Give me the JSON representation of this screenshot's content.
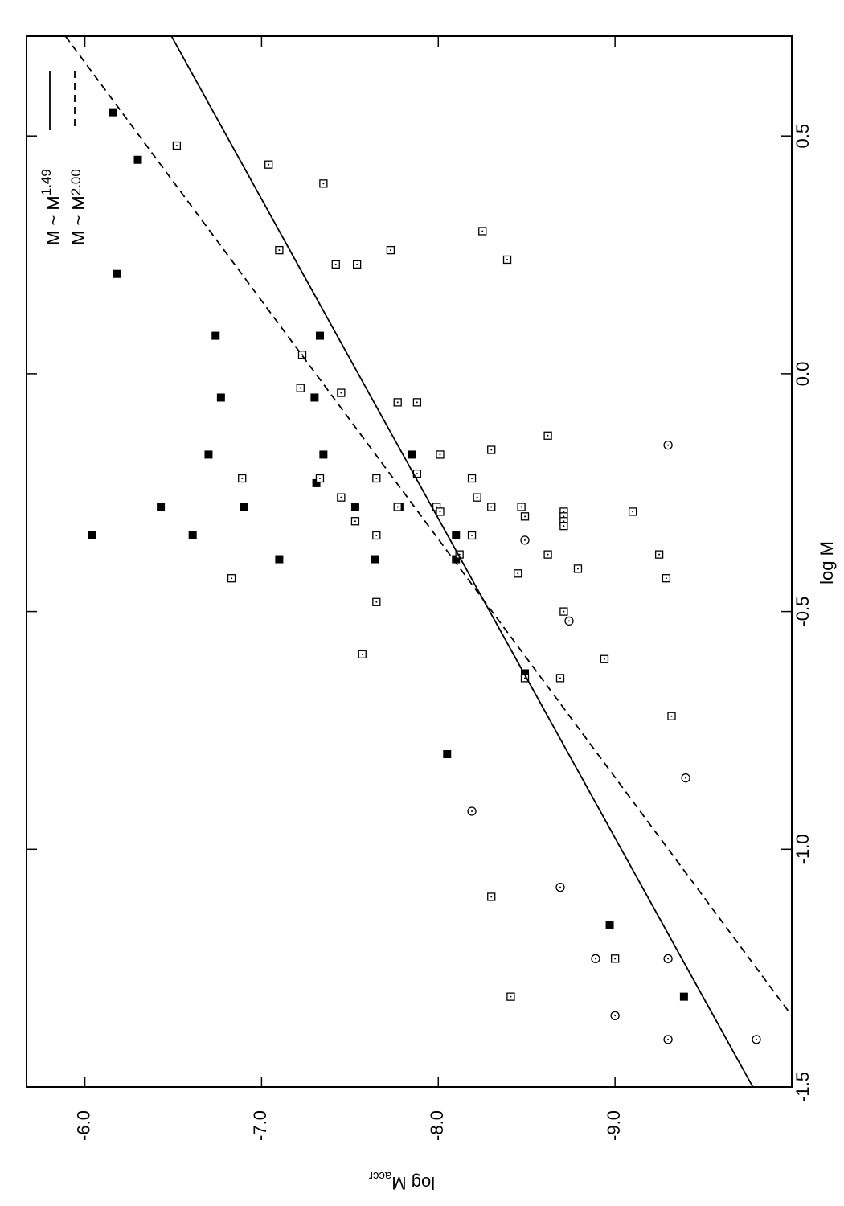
{
  "chart_data": {
    "type": "scatter",
    "x_label": "log M",
    "y_label": "log M",
    "y_label_subscript": "accr",
    "xlim": [
      -1.5,
      0.71
    ],
    "ylim": [
      -10.0,
      -5.67
    ],
    "xticks": [
      -1.5,
      {
        "value": -1.0,
        "label": "-1.0"
      },
      -0.5,
      {
        "value": 0.0,
        "label": "0.0"
      },
      0.5
    ],
    "yticks": [
      {
        "value": -6.0,
        "label": "-6.0"
      },
      {
        "value": -7.0,
        "label": "-7.0"
      },
      {
        "value": -8.0,
        "label": "-8.0"
      },
      {
        "value": -9.0,
        "label": "-9.0"
      }
    ],
    "series": [
      {
        "marker": "filled-square",
        "color": "#000000",
        "x": [
          0.55,
          0.45,
          0.21,
          0.08,
          -0.05,
          -0.17,
          -0.28,
          -0.28,
          -0.34,
          -0.34,
          -0.39,
          0.08,
          -0.05,
          -0.17,
          -0.23,
          -0.28,
          -0.28,
          -0.39,
          -0.17,
          -0.34,
          -0.39,
          -0.63,
          -0.8,
          -1.16,
          -1.31
        ],
        "values": [
          -6.16,
          -6.3,
          -6.18,
          -6.74,
          -6.77,
          -6.7,
          -6.43,
          -6.9,
          -6.04,
          -6.61,
          -7.1,
          -7.33,
          -7.3,
          -7.35,
          -7.31,
          -7.53,
          -7.78,
          -7.64,
          -7.85,
          -8.1,
          -8.1,
          -8.49,
          -8.05,
          -8.97,
          -9.39
        ]
      },
      {
        "marker": "open-square",
        "color": "#000000",
        "x": [
          0.48,
          0.44,
          0.4,
          0.3,
          0.26,
          0.26,
          0.23,
          0.23,
          0.24,
          0.04,
          -0.03,
          -0.04,
          -0.06,
          -0.06,
          -0.13,
          -0.16,
          -0.17,
          -0.21,
          -0.22,
          -0.22,
          -0.22,
          -0.22,
          -0.26,
          -0.26,
          -0.28,
          -0.29,
          -0.28,
          -0.28,
          -0.28,
          -0.29,
          -0.29,
          -0.31,
          -0.3,
          -0.3,
          -0.31,
          -0.32,
          -0.34,
          -0.34,
          -0.38,
          -0.38,
          -0.38,
          -0.42,
          -0.41,
          -0.43,
          -0.43,
          -0.48,
          -0.5,
          -0.59,
          -0.6,
          -0.64,
          -0.64,
          -0.72,
          -1.1,
          -1.23,
          -1.31
        ],
        "values": [
          -6.52,
          -7.04,
          -7.35,
          -8.25,
          -7.1,
          -7.73,
          -7.42,
          -7.54,
          -8.39,
          -7.23,
          -7.22,
          -7.45,
          -7.77,
          -7.88,
          -8.62,
          -8.3,
          -8.01,
          -7.88,
          -6.89,
          -7.33,
          -7.65,
          -8.19,
          -7.45,
          -8.22,
          -7.99,
          -8.01,
          -7.77,
          -8.3,
          -8.47,
          -8.71,
          -9.1,
          -7.53,
          -8.49,
          -8.71,
          -8.71,
          -8.71,
          -7.65,
          -8.19,
          -8.12,
          -8.62,
          -9.25,
          -8.45,
          -8.79,
          -6.83,
          -9.29,
          -7.65,
          -8.71,
          -7.57,
          -8.94,
          -8.49,
          -8.69,
          -9.32,
          -8.3,
          -9.0,
          -8.41
        ]
      },
      {
        "marker": "open-circle",
        "color": "#000000",
        "x": [
          -0.15,
          -0.35,
          -0.52,
          -0.85,
          -0.92,
          -1.08,
          -1.23,
          -1.23,
          -1.35,
          -1.4,
          -1.4
        ],
        "values": [
          -9.3,
          -8.49,
          -8.74,
          -9.4,
          -8.19,
          -8.69,
          -8.89,
          -9.3,
          -9.0,
          -9.3,
          -9.8
        ]
      },
      {
        "type": "line",
        "name": "M ~ M",
        "exponent": "1.49",
        "dash": "solid",
        "color": "#000000",
        "x": [
          0.71,
          -1.5
        ],
        "values": [
          -6.49,
          -9.78
        ]
      },
      {
        "type": "line",
        "name": "M ~ M",
        "exponent": "2.00",
        "dash": "dashed",
        "color": "#000000",
        "x": [
          0.71,
          -1.35
        ],
        "values": [
          -5.89,
          -10.0
        ]
      }
    ]
  }
}
